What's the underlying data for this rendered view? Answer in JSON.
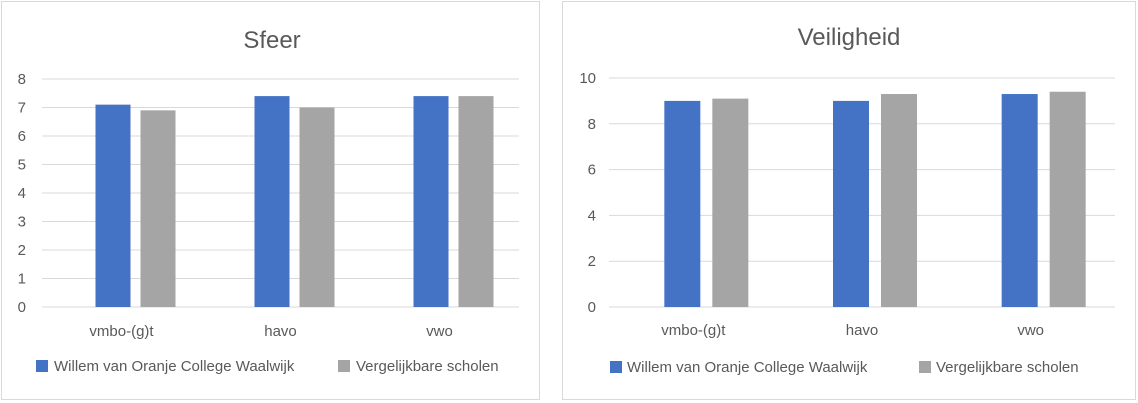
{
  "chart_data": [
    {
      "type": "bar",
      "title": "Sfeer",
      "categories": [
        "vmbo-(g)t",
        "havo",
        "vwo"
      ],
      "series": [
        {
          "name": "Willem van Oranje College Waalwijk",
          "color": "#4472c4",
          "values": [
            7.1,
            7.4,
            7.4
          ]
        },
        {
          "name": "Vergelijkbare scholen",
          "color": "#a5a5a5",
          "values": [
            6.9,
            7.0,
            7.4
          ]
        }
      ],
      "ylim": [
        0,
        8
      ],
      "yticks": [
        0,
        1,
        2,
        3,
        4,
        5,
        6,
        7,
        8
      ],
      "grid": true,
      "legend": "bottom"
    },
    {
      "type": "bar",
      "title": "Veiligheid",
      "categories": [
        "vmbo-(g)t",
        "havo",
        "vwo"
      ],
      "series": [
        {
          "name": "Willem van Oranje College Waalwijk",
          "color": "#4472c4",
          "values": [
            9.0,
            9.0,
            9.3
          ]
        },
        {
          "name": "Vergelijkbare scholen",
          "color": "#a5a5a5",
          "values": [
            9.1,
            9.3,
            9.4
          ]
        }
      ],
      "ylim": [
        0,
        10
      ],
      "yticks": [
        0,
        2,
        4,
        6,
        8,
        10
      ],
      "grid": true,
      "legend": "bottom"
    }
  ]
}
